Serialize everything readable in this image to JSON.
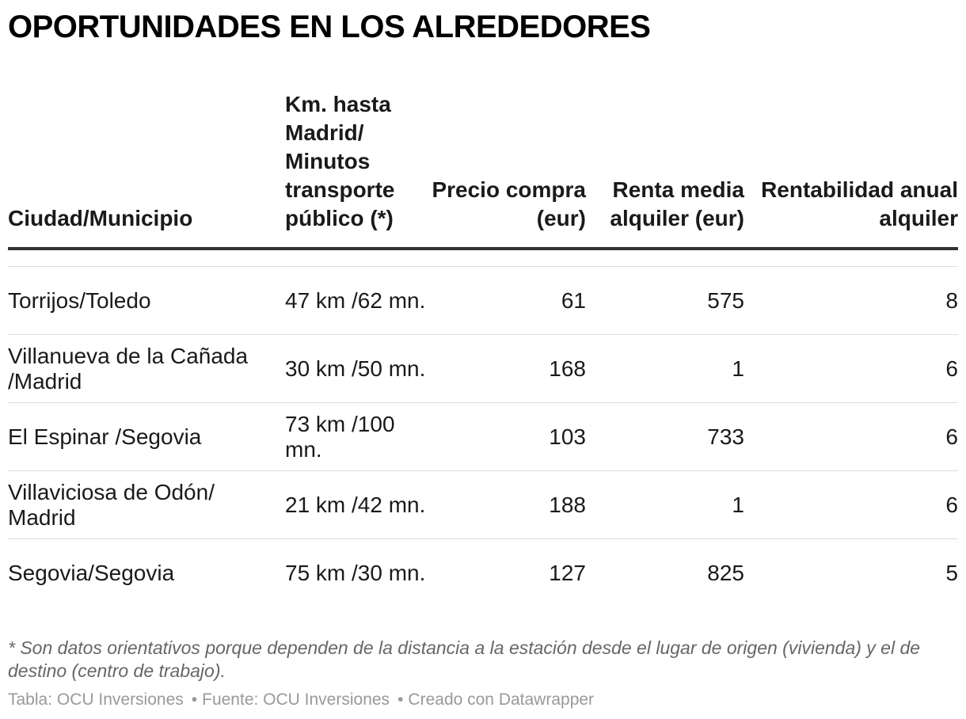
{
  "title": "OPORTUNIDADES EN LOS ALREDEDORES",
  "chart_data": {
    "type": "table",
    "columns": [
      "Ciudad/Municipio",
      "Km. hasta Madrid/ Minutos transporte público (*)",
      "Precio compra (eur)",
      "Renta media alquiler (eur)",
      "Rentabilidad anual alquiler"
    ],
    "rows": [
      [
        "Torrijos/Toledo",
        "47 km /62 mn.",
        "61",
        "575",
        "8"
      ],
      [
        "Villanueva de la Cañada /Madrid",
        "30 km /50 mn.",
        "168",
        "1",
        "6"
      ],
      [
        "El Espinar /Segovia",
        "73 km /100 mn.",
        "103",
        "733",
        "6"
      ],
      [
        "Villaviciosa de Odón/ Madrid",
        "21 km /42 mn.",
        "188",
        "1",
        "6"
      ],
      [
        "Segovia/Segovia",
        "75 km /30 mn.",
        "127",
        "825",
        "5"
      ]
    ]
  },
  "notes": "* Son datos orientativos porque dependen de la distancia a la estación desde el lugar de origen (vivienda) y el de destino (centro de trabajo).",
  "footer": {
    "table": "Tabla: OCU Inversiones",
    "source": "Fuente: OCU Inversiones",
    "credit": "Creado con Datawrapper"
  }
}
